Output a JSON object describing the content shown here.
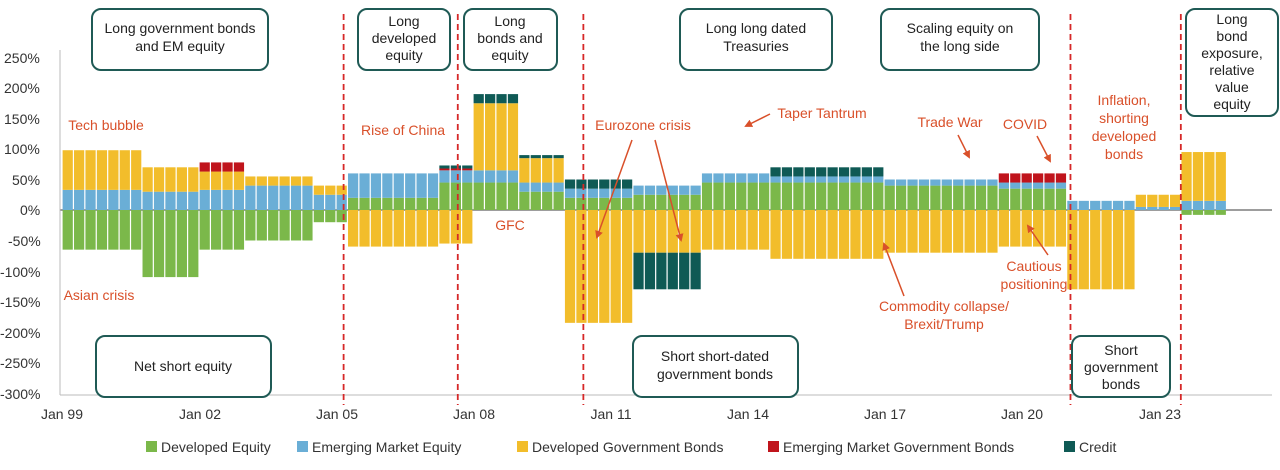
{
  "chart_data": {
    "type": "bar",
    "stacked": true,
    "x_start": "Jan 99",
    "x_ticks": [
      "Jan 99",
      "Jan 02",
      "Jan 05",
      "Jan 08",
      "Jan 11",
      "Jan 14",
      "Jan 17",
      "Jan 20",
      "Jan 23"
    ],
    "y_ticks": [
      "250%",
      "200%",
      "150%",
      "100%",
      "50%",
      "0%",
      "-50%",
      "-100%",
      "-150%",
      "-200%",
      "-250%",
      "-300%"
    ],
    "ylim": [
      -300,
      250
    ],
    "legend_position": "bottom",
    "series": [
      {
        "name": "Developed Equity",
        "color": "#7bb84a",
        "key": "de"
      },
      {
        "name": "Emerging Market Equity",
        "color": "#6aaed6",
        "key": "em"
      },
      {
        "name": "Developed Government Bonds",
        "color": "#f2bd2b",
        "key": "gb"
      },
      {
        "name": "Emerging Market Government Bonds",
        "color": "#c0141c",
        "key": "emgb"
      },
      {
        "name": "Credit",
        "color": "#0f5a55",
        "key": "cr"
      }
    ],
    "period_positions": [
      {
        "start": "1999-01",
        "end": "2000-09",
        "de": -65,
        "em": 33,
        "gb": 65,
        "emgb": 0,
        "cr": 0
      },
      {
        "start": "2000-10",
        "end": "2001-12",
        "de": -110,
        "em": 30,
        "gb": 40,
        "emgb": 0,
        "cr": 0
      },
      {
        "start": "2002-01",
        "end": "2002-12",
        "de": -65,
        "em": 33,
        "gb": 30,
        "emgb": 15,
        "cr": 0
      },
      {
        "start": "2003-01",
        "end": "2004-06",
        "de": -50,
        "em": 40,
        "gb": 15,
        "emgb": 0,
        "cr": 0
      },
      {
        "start": "2004-07",
        "end": "2005-02",
        "de": -20,
        "em": 25,
        "gb": 15,
        "emgb": 0,
        "cr": 0
      },
      {
        "start": "2005-03",
        "end": "2007-02",
        "de": 20,
        "em": 40,
        "gb": -60,
        "emgb": 0,
        "cr": 0
      },
      {
        "start": "2007-03",
        "end": "2007-12",
        "de": 45,
        "em": 20,
        "gb": -55,
        "emgb": 3,
        "cr": 5
      },
      {
        "start": "2008-01",
        "end": "2008-12",
        "de": 45,
        "em": 20,
        "gb": 110,
        "emgb": 0,
        "cr": 15
      },
      {
        "start": "2009-01",
        "end": "2009-12",
        "de": 30,
        "em": 15,
        "gb": 40,
        "emgb": 0,
        "cr": 5
      },
      {
        "start": "2010-01",
        "end": "2011-06",
        "de": 20,
        "em": 15,
        "gb": -185,
        "emgb": 0,
        "cr": 15
      },
      {
        "start": "2011-07",
        "end": "2012-12",
        "de": 25,
        "em": 15,
        "gb": -70,
        "emgb": 0,
        "cr": -60
      },
      {
        "start": "2013-01",
        "end": "2014-06",
        "de": 45,
        "em": 15,
        "gb": -65,
        "emgb": 0,
        "cr": 0
      },
      {
        "start": "2014-07",
        "end": "2016-12",
        "de": 45,
        "em": 10,
        "gb": -80,
        "emgb": 0,
        "cr": 15
      },
      {
        "start": "2017-01",
        "end": "2019-06",
        "de": 40,
        "em": 10,
        "gb": -70,
        "emgb": 0,
        "cr": 0
      },
      {
        "start": "2019-07",
        "end": "2020-12",
        "de": 35,
        "em": 10,
        "gb": -60,
        "emgb": 15,
        "cr": 0
      },
      {
        "start": "2021-01",
        "end": "2022-06",
        "de": 0,
        "em": 15,
        "gb": -130,
        "emgb": 0,
        "cr": 0
      },
      {
        "start": "2022-07",
        "end": "2023-06",
        "de": 0,
        "em": 5,
        "gb": 20,
        "emgb": 0,
        "cr": 0
      },
      {
        "start": "2023-07",
        "end": "2024-06",
        "de": -8,
        "em": 15,
        "gb": 80,
        "emgb": 0,
        "cr": 0
      }
    ],
    "regime_dividers": [
      "2005-03",
      "2007-09",
      "2010-06",
      "2021-02",
      "2023-07"
    ]
  },
  "regime_boxes": {
    "top": [
      "Long government bonds and EM equity",
      "Long developed equity",
      "Long bonds and equity",
      "Long long dated Treasuries",
      "Scaling equity on the long side",
      "Long bond exposure, relative value equity"
    ],
    "bottom": [
      "Net short equity",
      "Short short-dated government bonds",
      "Short government bonds"
    ]
  },
  "annotations": [
    "Tech bubble",
    "Asian crisis",
    "Rise of China",
    "GFC",
    "Eurozone crisis",
    "Taper Tantrum",
    "Trade War",
    "COVID",
    "Inflation, shorting developed bonds",
    "Cautious positioning",
    "Commodity collapse/ Brexit/Trump"
  ]
}
